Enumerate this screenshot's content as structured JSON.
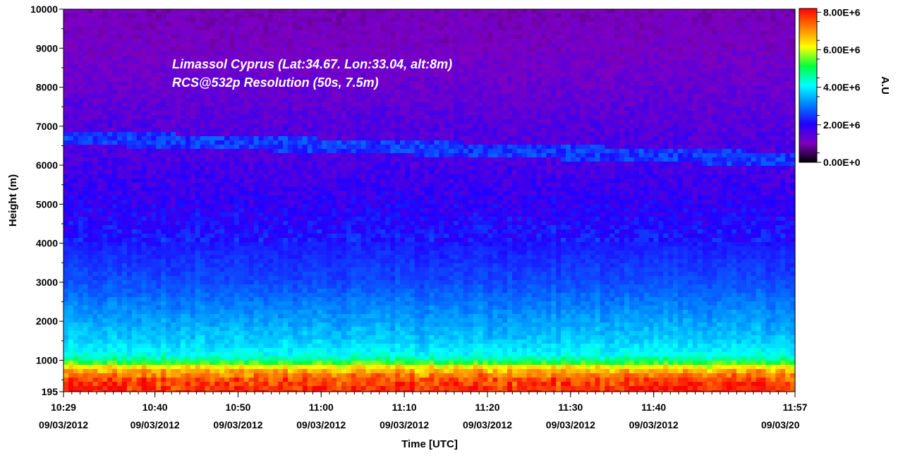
{
  "chart_data": {
    "type": "heatmap",
    "annotations": [
      "Limassol Cyprus (Lat:34.67. Lon:33.04, alt:8m)",
      "RCS@532p Resolution (50s, 7.5m)"
    ],
    "xlabel": "Time [UTC]",
    "ylabel": "Height (m)",
    "x_ticks": [
      {
        "time": "10:29",
        "date": "09/03/2012"
      },
      {
        "time": "10:40",
        "date": "09/03/2012"
      },
      {
        "time": "10:50",
        "date": "09/03/2012"
      },
      {
        "time": "11:00",
        "date": "09/03/2012"
      },
      {
        "time": "11:10",
        "date": "09/03/2012"
      },
      {
        "time": "11:20",
        "date": "09/03/2012"
      },
      {
        "time": "11:30",
        "date": "09/03/2012"
      },
      {
        "time": "11:40",
        "date": "09/03/2012"
      },
      {
        "time": "11:57",
        "date": "09/03/20"
      }
    ],
    "xlim": [
      "10:29",
      "11:57"
    ],
    "y_ticks": [
      195,
      1000,
      2000,
      3000,
      4000,
      5000,
      6000,
      7000,
      8000,
      9000,
      10000
    ],
    "ylim": [
      195,
      10000
    ],
    "colorbar": {
      "label": "A.U",
      "ticks": [
        "0.00E+0",
        "2.00E+6",
        "4.00E+6",
        "6.00E+6",
        "8.00E+6"
      ],
      "range": [
        0,
        8200000
      ],
      "colors": [
        "#000000",
        "#8000c0",
        "#2000ff",
        "#0080ff",
        "#00ffff",
        "#00ff40",
        "#ffff00",
        "#ff8000",
        "#ff0000"
      ]
    },
    "profile_height_m": [
      195,
      500,
      800,
      950,
      1100,
      1500,
      2000,
      2500,
      3000,
      4000,
      5000,
      6000,
      7000,
      8000,
      9000,
      10000
    ],
    "profile_value": [
      8000000,
      7600000,
      6500000,
      5200000,
      4200000,
      3700000,
      3350000,
      3000000,
      2650000,
      2250000,
      1900000,
      1650000,
      1500000,
      1300000,
      1100000,
      1000000
    ],
    "cloud_layer": {
      "height_start_m": 6700,
      "height_end_m": 6150,
      "value": 2500000
    }
  }
}
